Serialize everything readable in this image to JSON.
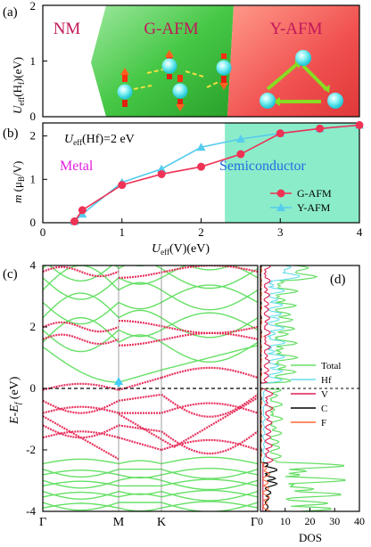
{
  "panel_a": {
    "label": "(a)",
    "ylabel": "U",
    "ylabel_sub": "eff",
    "ylabel_rest": "(H",
    "ylabel_sub2": "f",
    "ylabel_end": ")(eV)",
    "region_nm": "NM",
    "region_gafm": "G-AFM",
    "region_yafm": "Y-AFM",
    "colors": {
      "nm": "#ffffff",
      "gafm": "#3cc43c",
      "yafm": "#f04848",
      "nm_text": "#c0185a"
    },
    "y_ticks": [
      "0",
      "1",
      "2"
    ]
  },
  "panel_b": {
    "label": "(b)",
    "annotation": "U",
    "annotation_sub": "eff",
    "annotation_rest": "(Hf)=2 eV",
    "metal_label": "Metal",
    "semiconductor_label": "Semiconductor",
    "xlabel": "U",
    "xlabel_sub": "eff",
    "xlabel_rest": "(V)(eV)",
    "ylabel": "m",
    "ylabel_rest": " (μ",
    "ylabel_sub": "B",
    "ylabel_end": "/V)",
    "colors": {
      "metal": "#e020e0",
      "semiconductor": "#1e6ee0",
      "shade": "#7eeac4"
    }
  },
  "panel_c": {
    "label": "(c)",
    "ylabel": "E-E",
    "ylabel_sub": "f",
    "ylabel_end": " (eV)",
    "k_labels": [
      "Γ",
      "M",
      "K",
      "Γ"
    ],
    "y_ticks": [
      "-4",
      "-2",
      "0",
      "2",
      "4"
    ],
    "colors": {
      "green": "#66e066",
      "red": "#e8305c",
      "arrow": "#44ccff"
    }
  },
  "panel_d": {
    "label": "(d)",
    "xlabel": "DOS",
    "x_ticks": [
      "0",
      "10",
      "20",
      "30",
      "40"
    ],
    "legend": [
      {
        "name": "Total",
        "color": "#66dd66"
      },
      {
        "name": "Hf",
        "color": "#66ddee"
      },
      {
        "name": "V",
        "color": "#dd2255"
      },
      {
        "name": "C",
        "color": "#000000"
      },
      {
        "name": "F",
        "color": "#ff6633"
      }
    ]
  },
  "chart_data": [
    {
      "type": "area",
      "title": "",
      "xlabel": "Ueff(V)(eV)",
      "ylabel": "Ueff(Hf)(eV)",
      "xlim": [
        0,
        4
      ],
      "ylim": [
        0,
        2
      ],
      "regions": [
        {
          "name": "NM",
          "boundary_to_next": [
            [
              0.6,
              2.0
            ],
            [
              0.5,
              1.4
            ],
            [
              0.85,
              0
            ]
          ]
        },
        {
          "name": "G-AFM",
          "boundary_to_next": [
            [
              2.4,
              2.0
            ],
            [
              2.3,
              0
            ]
          ]
        },
        {
          "name": "Y-AFM"
        }
      ]
    },
    {
      "type": "line",
      "title": "",
      "xlabel": "Ueff(V)(eV)",
      "ylabel": "m (μB/V)",
      "xlim": [
        0,
        4
      ],
      "ylim": [
        0,
        2.3
      ],
      "x_ticks": [
        0,
        1,
        2,
        3,
        4
      ],
      "y_ticks": [
        0,
        1,
        2
      ],
      "grid": false,
      "legend_position": "bottom-right",
      "shaded_x_range": [
        2.3,
        4
      ],
      "series": [
        {
          "name": "G-AFM",
          "color": "#ee3355",
          "marker": "circle",
          "x": [
            0.4,
            0.5,
            1.0,
            1.5,
            2.0,
            2.5,
            3.0,
            3.5,
            4.0
          ],
          "y": [
            0.03,
            0.29,
            0.87,
            1.12,
            1.29,
            1.58,
            2.06,
            2.17,
            2.25
          ]
        },
        {
          "name": "Y-AFM",
          "color": "#55ccee",
          "marker": "triangle",
          "x": [
            0.4,
            0.5,
            1.0,
            1.5,
            2.0,
            2.5,
            3.0,
            3.5,
            4.0
          ],
          "y": [
            0.03,
            0.2,
            0.93,
            1.24,
            1.74,
            1.93,
            2.06,
            2.17,
            2.25
          ]
        }
      ]
    },
    {
      "type": "line",
      "title": "",
      "ylabel": "E-Ef (eV)",
      "ylim": [
        -4,
        4
      ],
      "x_ticks": [
        "Γ",
        "M",
        "K",
        "Γ"
      ],
      "fermi_level": 0,
      "valence_band_max": -0.05,
      "conduction_band_min": 0.18,
      "note_values": {
        "gap_marker_at": "M"
      }
    },
    {
      "type": "line",
      "title": "",
      "xlabel": "DOS",
      "xlim": [
        0,
        40
      ],
      "ylim": [
        -4,
        4
      ],
      "x_ticks": [
        0,
        10,
        20,
        30,
        40
      ],
      "series": [
        {
          "name": "Total",
          "color": "#66dd66"
        },
        {
          "name": "Hf",
          "color": "#66ddee"
        },
        {
          "name": "V",
          "color": "#dd2255"
        },
        {
          "name": "C",
          "color": "#000000"
        },
        {
          "name": "F",
          "color": "#ff6633"
        }
      ]
    }
  ]
}
